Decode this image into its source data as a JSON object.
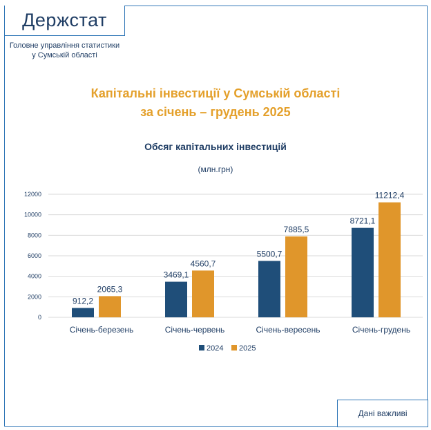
{
  "header": {
    "logo": "Держстат",
    "org_line1": "Головне управління статистики",
    "org_line2": "у Сумській області"
  },
  "title_line1": "Капітальні інвестиції у Сумській області",
  "title_line2": "за січень – грудень 2025",
  "footer": {
    "button": "Дані важливі"
  },
  "colors": {
    "2024": "#1f4e79",
    "2025": "#e0962b"
  },
  "chart_data": {
    "type": "bar",
    "title": "Обсяг капітальних інвестицій",
    "subtitle": "(млн.грн)",
    "categories": [
      "Січень-березень",
      "Січень-червень",
      "Січень-вересень",
      "Січень-грудень"
    ],
    "series": [
      {
        "name": "2024",
        "values": [
          912.2,
          3469.1,
          5500.7,
          8721.1
        ],
        "labels": [
          "912,2",
          "3469,1",
          "5500,7",
          "8721,1"
        ]
      },
      {
        "name": "2025",
        "values": [
          2065.3,
          4560.7,
          7885.5,
          11212.4
        ],
        "labels": [
          "2065,3",
          "4560,7",
          "7885,5",
          "11212,4"
        ]
      }
    ],
    "yticks": [
      "0",
      "2000",
      "4000",
      "6000",
      "8000",
      "10000",
      "12000"
    ],
    "ylim": [
      0,
      12000
    ],
    "grid": true,
    "legend": "bottom"
  }
}
